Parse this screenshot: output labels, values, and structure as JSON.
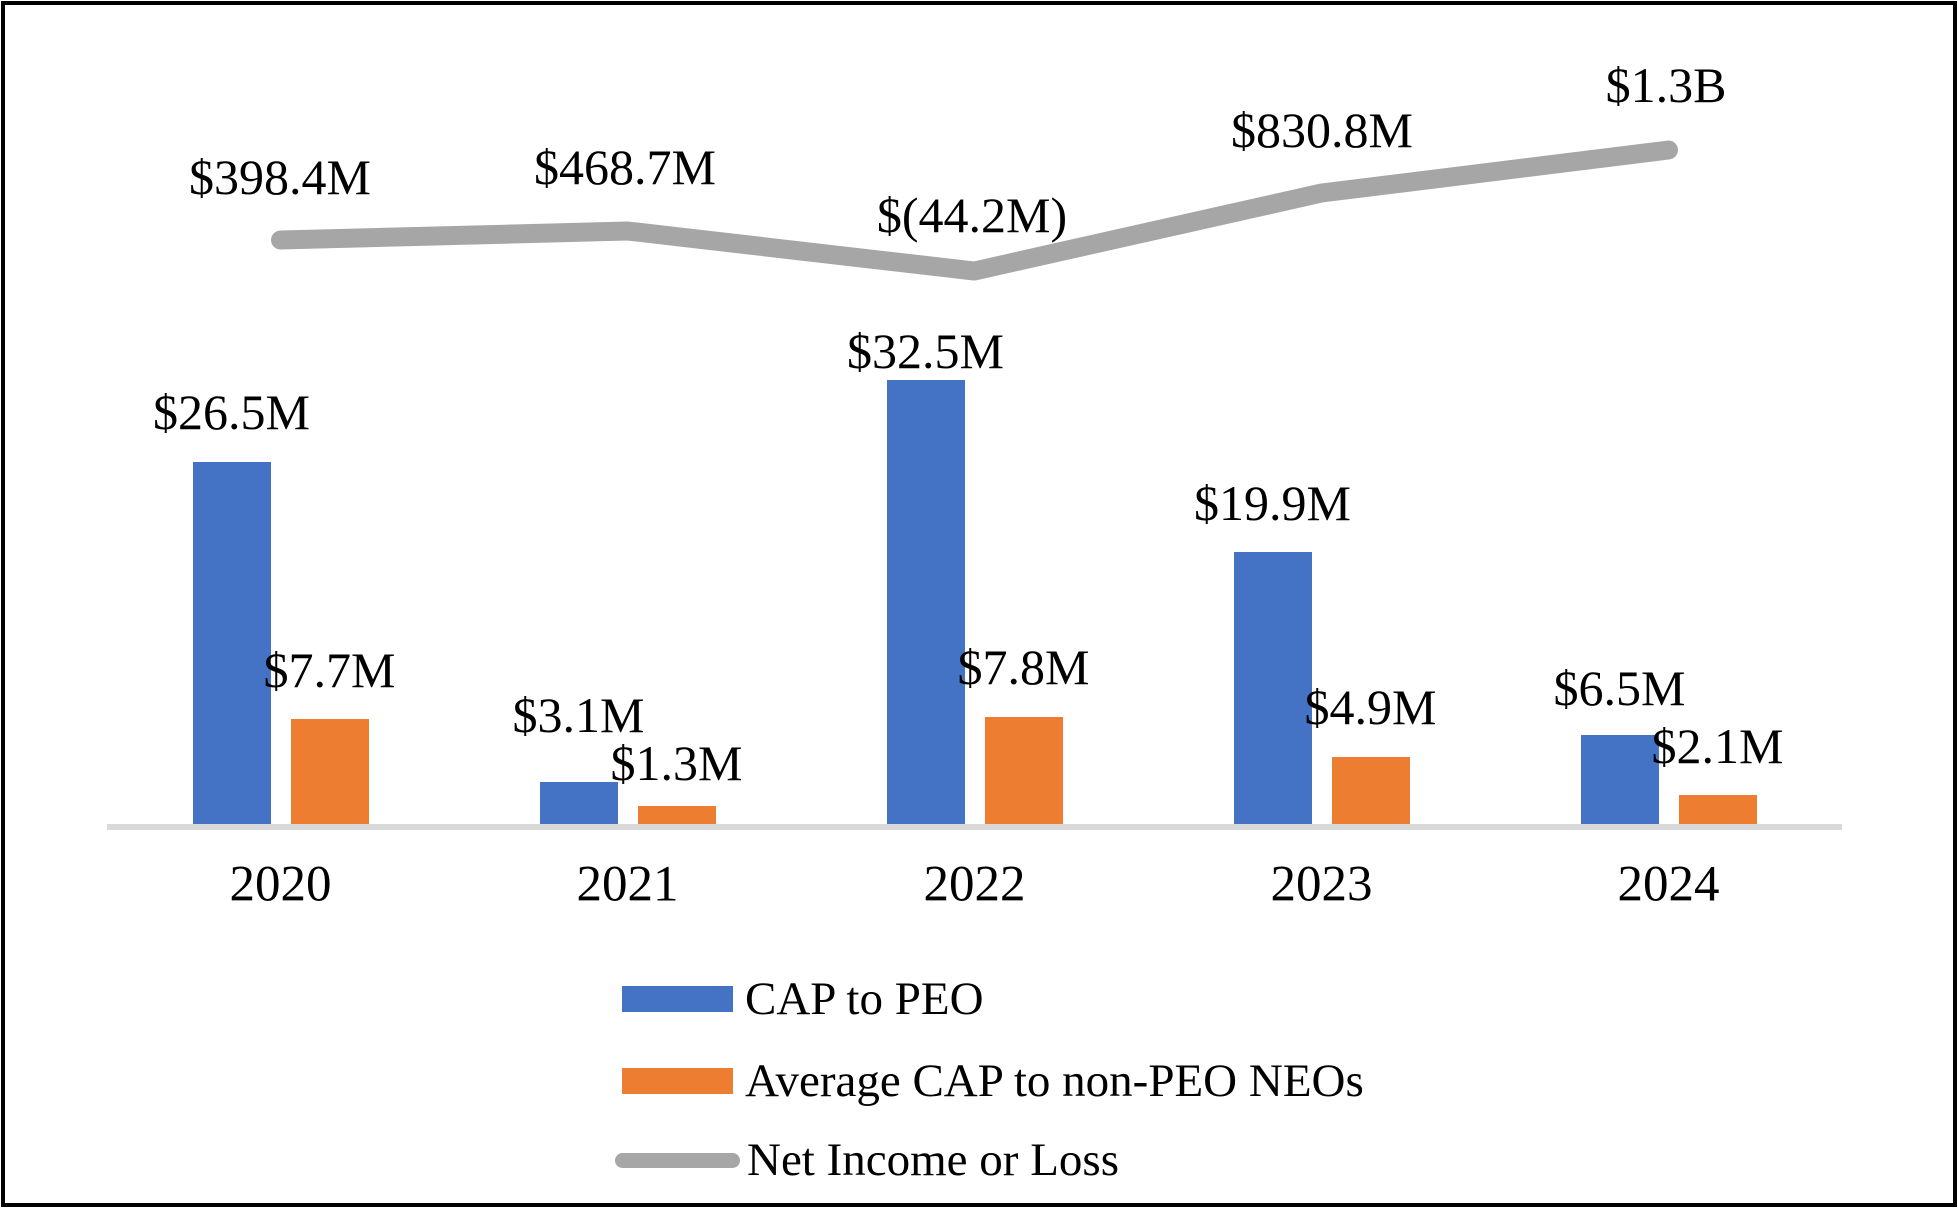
{
  "chart_data": {
    "type": "bar",
    "subtype": "grouped-bars-with-line-overlay",
    "categories": [
      "2020",
      "2021",
      "2022",
      "2023",
      "2024"
    ],
    "series": [
      {
        "name": "CAP to PEO",
        "type": "bar",
        "color": "#4472C4",
        "values_millions_usd": [
          26.5,
          3.1,
          32.5,
          19.9,
          6.5
        ],
        "data_labels": [
          "$26.5M",
          "$3.1M",
          "$32.5M",
          "$19.9M",
          "$6.5M"
        ]
      },
      {
        "name": "Average CAP to non-PEO NEOs",
        "type": "bar",
        "color": "#ED7D31",
        "values_millions_usd": [
          7.7,
          1.3,
          7.8,
          4.9,
          2.1
        ],
        "data_labels": [
          "$7.7M",
          "$1.3M",
          "$7.8M",
          "$4.9M",
          "$2.1M"
        ]
      },
      {
        "name": "Net Income or Loss",
        "type": "line",
        "color": "#A6A6A6",
        "values_millions_usd": [
          398.4,
          468.7,
          -44.2,
          830.8,
          1300
        ],
        "data_labels": [
          "$398.4M",
          "$468.7M",
          "$(44.2M)",
          "$830.8M",
          "$1.3B"
        ]
      }
    ],
    "title": "",
    "xlabel": "",
    "ylabel": "",
    "value_axis_visible": false,
    "gridlines": false,
    "axis_line_color": "#D9D9D9",
    "text_color": "#000000",
    "background_color": "#FFFFFF",
    "border_color": "#000000",
    "legend_position": "bottom-center"
  }
}
